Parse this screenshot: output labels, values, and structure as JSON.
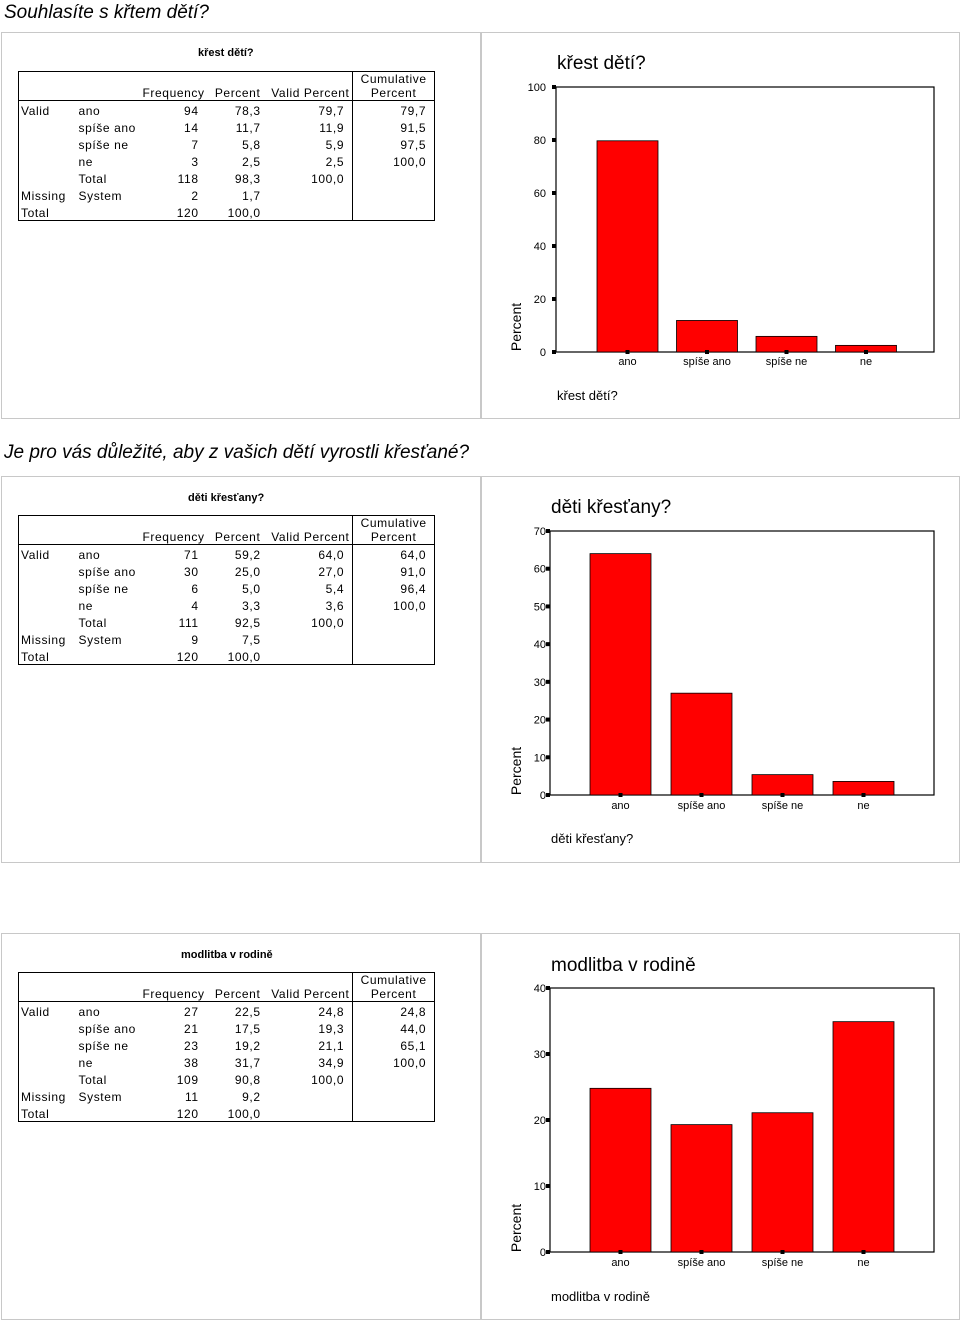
{
  "sections": [
    {
      "heading": "Souhlasíte s křtem dětí?",
      "table": {
        "title": "křest dětí?",
        "col_headers": [
          "Frequency",
          "Percent",
          "Valid Percent",
          "Cumulative",
          "Percent"
        ],
        "rows": [
          [
            "Valid",
            "ano",
            "94",
            "78,3",
            "79,7",
            "79,7"
          ],
          [
            "",
            "spíše ano",
            "14",
            "11,7",
            "11,9",
            "91,5"
          ],
          [
            "",
            "spíše ne",
            "7",
            "5,8",
            "5,9",
            "97,5"
          ],
          [
            "",
            "ne",
            "3",
            "2,5",
            "2,5",
            "100,0"
          ],
          [
            "",
            "Total",
            "118",
            "98,3",
            "100,0",
            ""
          ],
          [
            "Missing",
            "System",
            "2",
            "1,7",
            "",
            ""
          ],
          [
            "Total",
            "",
            "120",
            "100,0",
            "",
            ""
          ]
        ]
      }
    },
    {
      "heading": "Je pro vás důležité, aby z vašich dětí vyrostli křesťané?",
      "table": {
        "title": "děti křesťany?",
        "col_headers": [
          "Frequency",
          "Percent",
          "Valid Percent",
          "Cumulative",
          "Percent"
        ],
        "rows": [
          [
            "Valid",
            "ano",
            "71",
            "59,2",
            "64,0",
            "64,0"
          ],
          [
            "",
            "spíše ano",
            "30",
            "25,0",
            "27,0",
            "91,0"
          ],
          [
            "",
            "spíše ne",
            "6",
            "5,0",
            "5,4",
            "96,4"
          ],
          [
            "",
            "ne",
            "4",
            "3,3",
            "3,6",
            "100,0"
          ],
          [
            "",
            "Total",
            "111",
            "92,5",
            "100,0",
            ""
          ],
          [
            "Missing",
            "System",
            "9",
            "7,5",
            "",
            ""
          ],
          [
            "Total",
            "",
            "120",
            "100,0",
            "",
            ""
          ]
        ]
      }
    },
    {
      "heading": "",
      "table": {
        "title": "modlitba v rodině",
        "col_headers": [
          "Frequency",
          "Percent",
          "Valid Percent",
          "Cumulative",
          "Percent"
        ],
        "rows": [
          [
            "Valid",
            "ano",
            "27",
            "22,5",
            "24,8",
            "24,8"
          ],
          [
            "",
            "spíše ano",
            "21",
            "17,5",
            "19,3",
            "44,0"
          ],
          [
            "",
            "spíše ne",
            "23",
            "19,2",
            "21,1",
            "65,1"
          ],
          [
            "",
            "ne",
            "38",
            "31,7",
            "34,9",
            "100,0"
          ],
          [
            "",
            "Total",
            "109",
            "90,8",
            "100,0",
            ""
          ],
          [
            "Missing",
            "System",
            "11",
            "9,2",
            "",
            ""
          ],
          [
            "Total",
            "",
            "120",
            "100,0",
            "",
            ""
          ]
        ]
      }
    }
  ],
  "chart_data": [
    {
      "type": "bar",
      "title": "křest dětí?",
      "categories": [
        "ano",
        "spíše ano",
        "spíše ne",
        "ne"
      ],
      "values": [
        79.7,
        11.9,
        5.9,
        2.5
      ],
      "xlabel": "křest dětí?",
      "ylabel": "Percent",
      "yticks": [
        "0",
        "20",
        "40",
        "60",
        "80",
        "100"
      ],
      "ylim": [
        0,
        100
      ],
      "color": "#ff0000"
    },
    {
      "type": "bar",
      "title": "děti křesťany?",
      "categories": [
        "ano",
        "spíše ano",
        "spíše ne",
        "ne"
      ],
      "values": [
        64.0,
        27.0,
        5.4,
        3.6
      ],
      "xlabel": "děti křesťany?",
      "ylabel": "Percent",
      "yticks": [
        "0",
        "10",
        "20",
        "30",
        "40",
        "50",
        "60",
        "70"
      ],
      "ylim": [
        0,
        70
      ],
      "color": "#ff0000"
    },
    {
      "type": "bar",
      "title": "modlitba v rodině",
      "categories": [
        "ano",
        "spíše ano",
        "spíše ne",
        "ne"
      ],
      "values": [
        24.8,
        19.3,
        21.1,
        34.9
      ],
      "xlabel": "modlitba v rodině",
      "ylabel": "Percent",
      "yticks": [
        "0",
        "10",
        "20",
        "30",
        "40"
      ],
      "ylim": [
        0,
        40
      ],
      "color": "#ff0000"
    }
  ]
}
